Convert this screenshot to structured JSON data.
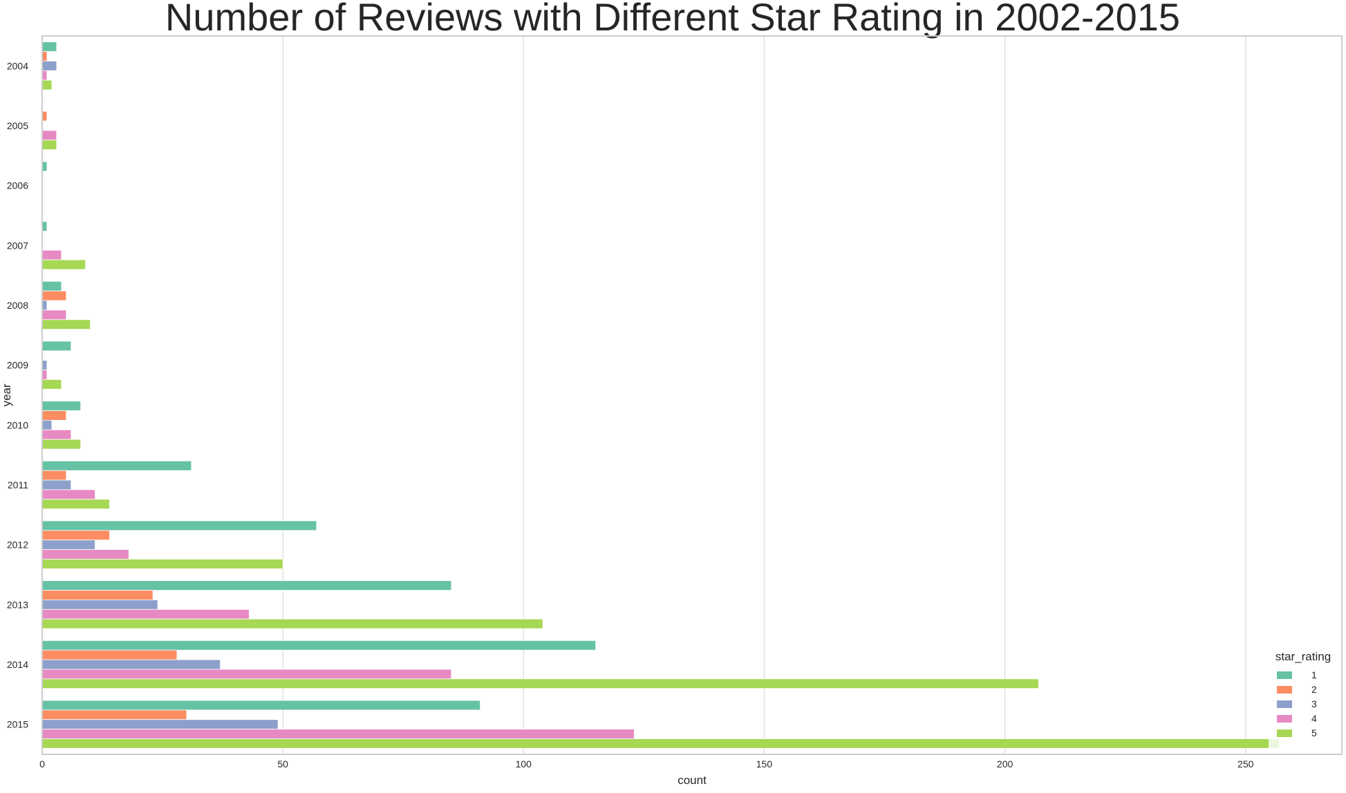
{
  "chart_data": {
    "type": "bar",
    "orientation": "horizontal",
    "title": "Number of Reviews with Different Star Rating in 2002-2015",
    "xlabel": "count",
    "ylabel": "year",
    "xlim": [
      0,
      270
    ],
    "xticks": [
      0,
      50,
      100,
      150,
      200,
      250
    ],
    "grid": true,
    "categories": [
      "2004",
      "2005",
      "2006",
      "2007",
      "2008",
      "2009",
      "2010",
      "2011",
      "2012",
      "2013",
      "2014",
      "2015"
    ],
    "legend": {
      "title": "star_rating",
      "placement": "lower right"
    },
    "series": [
      {
        "name": "1",
        "color": "#66c2a5",
        "values": [
          3,
          0,
          1,
          1,
          4,
          6,
          8,
          31,
          57,
          85,
          115,
          91
        ]
      },
      {
        "name": "2",
        "color": "#fc8d62",
        "values": [
          1,
          1,
          0,
          0,
          5,
          0,
          5,
          5,
          14,
          23,
          28,
          30
        ]
      },
      {
        "name": "3",
        "color": "#8da0cb",
        "values": [
          3,
          0,
          0,
          0,
          1,
          1,
          2,
          6,
          11,
          24,
          37,
          49
        ]
      },
      {
        "name": "4",
        "color": "#e78ac3",
        "values": [
          1,
          3,
          0,
          4,
          5,
          1,
          6,
          11,
          18,
          43,
          85,
          123
        ]
      },
      {
        "name": "5",
        "color": "#a6d854",
        "values": [
          2,
          3,
          0,
          9,
          10,
          4,
          8,
          14,
          50,
          104,
          207,
          257
        ]
      }
    ]
  }
}
